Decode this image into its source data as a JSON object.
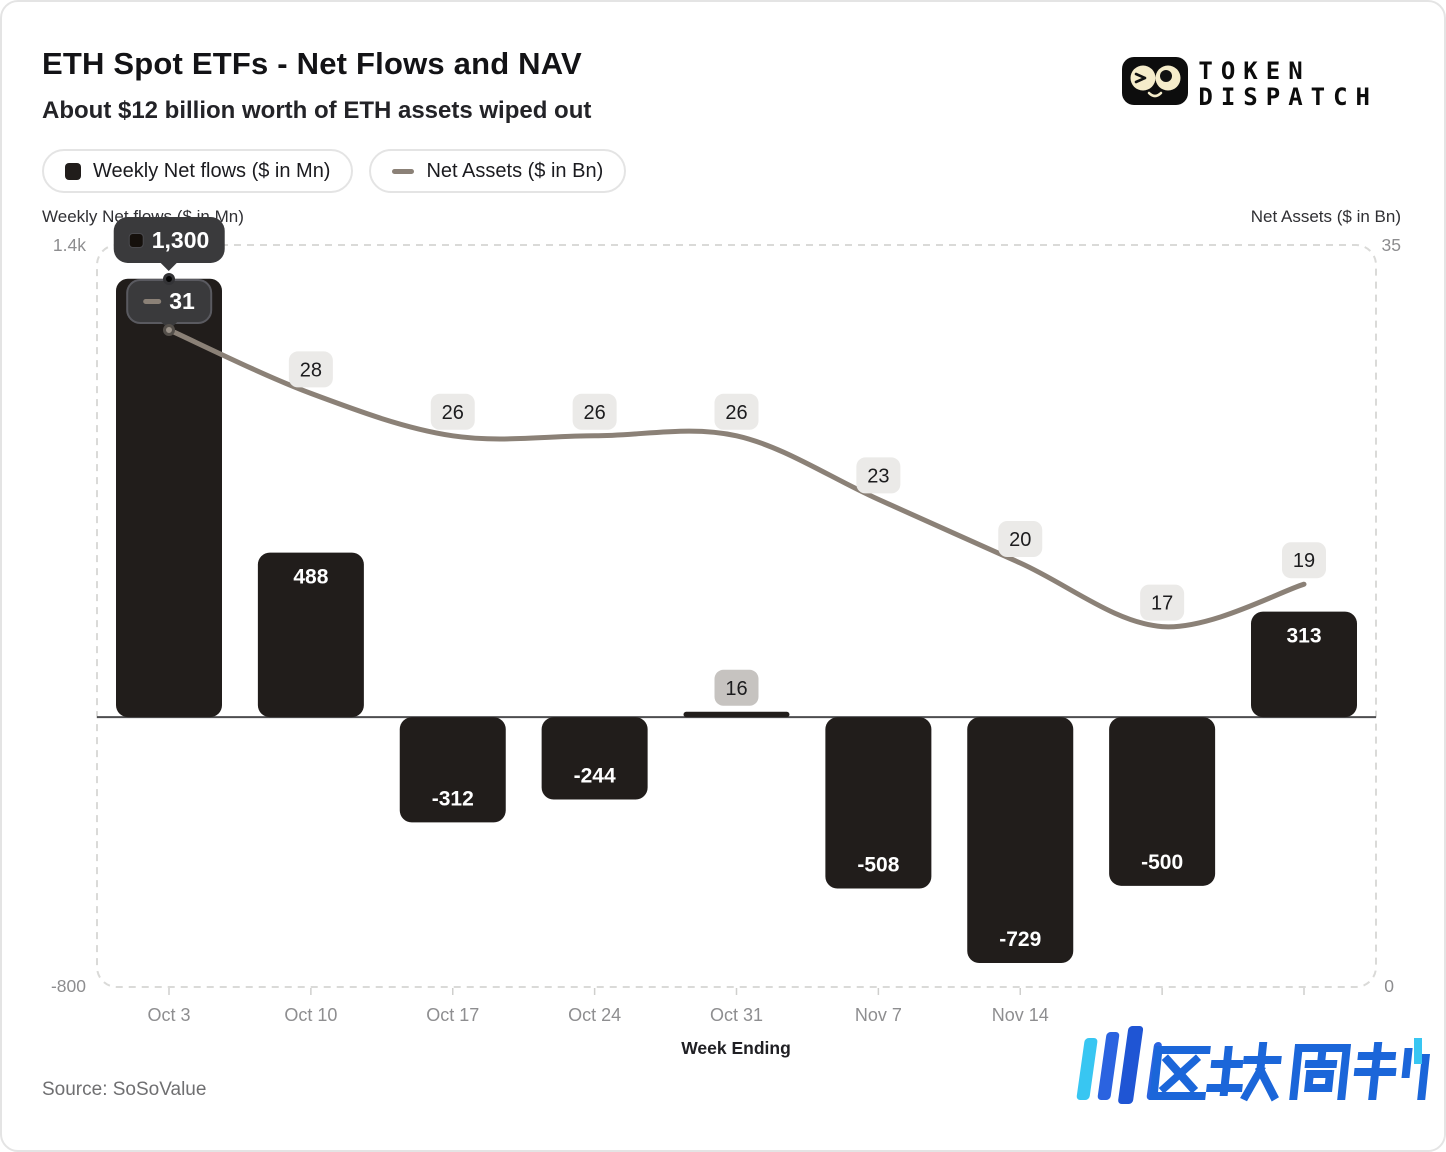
{
  "header": {
    "title": "ETH Spot ETFs - Net Flows and NAV",
    "subtitle": "About $12 billion worth of ETH assets wiped out"
  },
  "brand": {
    "line1": "TOKEN",
    "line2": "DISPATCH"
  },
  "legend": [
    {
      "label": "Weekly Net flows ($ in Mn)"
    },
    {
      "label": "Net Assets ($ in Bn)"
    }
  ],
  "axes": {
    "left": {
      "title": "Weekly Net flows ($ in Mn)",
      "top_tick": "1.4k",
      "bottom_tick": "-800"
    },
    "right": {
      "title": "Net Assets ($ in Bn)",
      "top_tick": "35",
      "bottom_tick": "0"
    },
    "x": {
      "title": "Week Ending"
    }
  },
  "tooltip": {
    "bar_value": "1,300",
    "line_value": "31"
  },
  "source": "Source: SoSoValue",
  "watermark": {
    "text": "区块周刊"
  },
  "chart_data": {
    "type": "bar+line",
    "x_tick_labels": [
      "Oct 3",
      "Oct 10",
      "Oct 17",
      "Oct 24",
      "Oct 31",
      "Nov 7",
      "Nov 14",
      "",
      ""
    ],
    "bar_series": {
      "name": "Weekly Net flows ($ in Mn)",
      "values": [
        1300,
        488,
        -312,
        -244,
        16,
        -508,
        -729,
        -500,
        313
      ],
      "labels_inside": [
        "",
        "488",
        "-312",
        "-244",
        "",
        "-508",
        "-729",
        "-500",
        "313"
      ],
      "badge_labels": [
        "",
        "",
        "",
        "",
        "16",
        "",
        "",
        "",
        ""
      ]
    },
    "line_series": {
      "name": "Net Assets ($ in Bn)",
      "values": [
        31,
        28,
        26,
        26,
        26,
        23,
        20,
        17,
        19
      ],
      "badge_labels": [
        "",
        "28",
        "26",
        "26",
        "26",
        "23",
        "20",
        "17",
        "19"
      ]
    },
    "left_axis": {
      "min": -800,
      "max": 1400
    },
    "right_axis": {
      "min": 0,
      "max": 35
    },
    "grid": "dashed-border-only",
    "legend_position": "top-left",
    "colors": {
      "bar": "#211d1b",
      "line": "#8b8177",
      "badge_bg": "#ebeae8",
      "badge_dark_bg": "#c6c3c0",
      "badge_text": "#1c1c1e",
      "dashed_border": "#dadad8",
      "zero_line": "#4d4d4f"
    }
  }
}
